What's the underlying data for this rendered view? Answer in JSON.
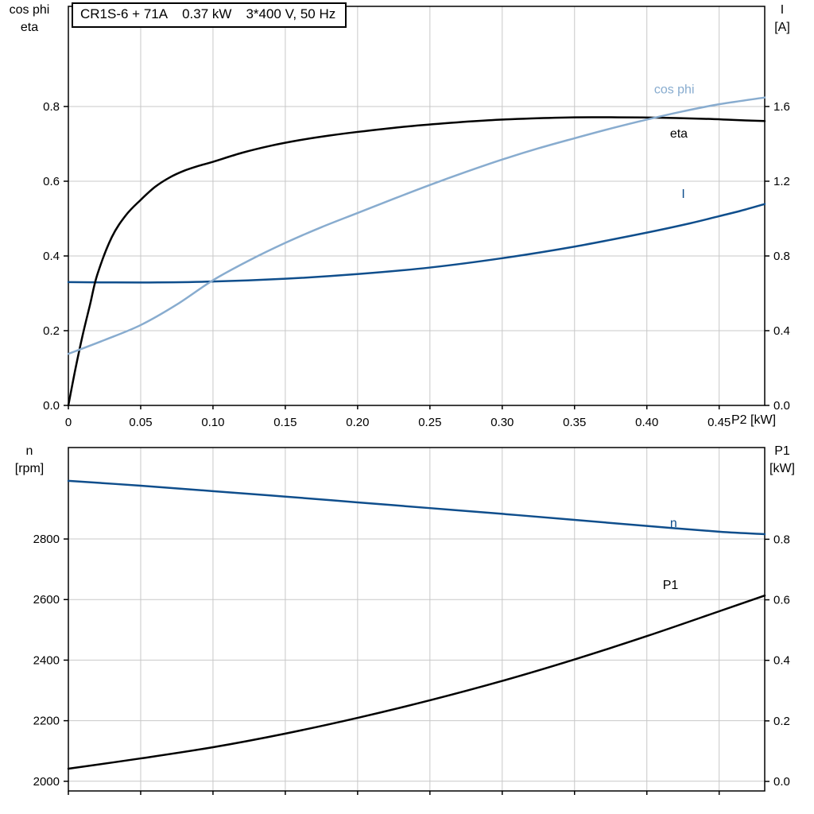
{
  "title_box": {
    "parts": [
      "CR1S-6 + 71A",
      "0.37 kW",
      "3*400 V, 50 Hz"
    ]
  },
  "axis_corner_labels": {
    "top_left": [
      "cos phi",
      "eta"
    ],
    "top_right": [
      "I",
      "[A]"
    ],
    "x_axis": "P2 [kW]",
    "bottom_left": [
      "n",
      "[rpm]"
    ],
    "bottom_right": [
      "P1",
      "[kW]"
    ]
  },
  "colors": {
    "black_curve": "#000000",
    "light_blue_curve": "#88accf",
    "dark_blue_curve": "#0f4e8c",
    "grid": "#c8c8c8",
    "border": "#000000",
    "text": "#000000"
  },
  "chart_data": [
    {
      "id": "top",
      "type": "line",
      "title": "CR1S-6 + 71A  0.37 kW  3*400 V, 50 Hz",
      "xlabel": "P2 [kW]",
      "x_range": [
        0,
        0.4815
      ],
      "x_ticks": {
        "values": [
          0,
          0.05,
          0.1,
          0.15,
          0.2,
          0.25,
          0.3,
          0.35,
          0.4,
          0.45
        ],
        "labels": [
          "0",
          "0.05",
          "0.10",
          "0.15",
          "0.20",
          "0.25",
          "0.30",
          "0.35",
          "0.40",
          "0.45"
        ]
      },
      "left_axis": {
        "label": "cos phi / eta",
        "range": [
          0,
          1.068
        ],
        "tick_values": [
          0,
          0.2,
          0.4,
          0.6,
          0.8
        ],
        "tick_labels": [
          "0.0",
          "0.2",
          "0.4",
          "0.6",
          "0.8"
        ]
      },
      "right_axis": {
        "label": "I [A]",
        "range": [
          0,
          2.136
        ],
        "tick_values": [
          0,
          0.4,
          0.8,
          1.2,
          1.6
        ],
        "tick_labels": [
          "0.0",
          "0.4",
          "0.8",
          "1.2",
          "1.6"
        ]
      },
      "grid": true,
      "series": [
        {
          "name": "I",
          "axis": "right",
          "color_key": "dark_blue_curve",
          "label": {
            "text": "I",
            "x": 0.424,
            "y": 1.111
          },
          "points": [
            [
              0,
              0.66
            ],
            [
              0.05,
              0.658
            ],
            [
              0.1,
              0.663
            ],
            [
              0.15,
              0.678
            ],
            [
              0.2,
              0.703
            ],
            [
              0.25,
              0.738
            ],
            [
              0.3,
              0.788
            ],
            [
              0.35,
              0.85
            ],
            [
              0.4,
              0.925
            ],
            [
              0.43,
              0.975
            ],
            [
              0.45,
              1.013
            ],
            [
              0.465,
              1.042
            ],
            [
              0.4815,
              1.078
            ]
          ]
        },
        {
          "name": "eta",
          "axis": "left",
          "color_key": "black_curve",
          "label": {
            "text": "eta",
            "x": 0.416,
            "y": 0.717
          },
          "points": [
            [
              0,
              0
            ],
            [
              0.005,
              0.1
            ],
            [
              0.01,
              0.19
            ],
            [
              0.015,
              0.27
            ],
            [
              0.02,
              0.35
            ],
            [
              0.03,
              0.45
            ],
            [
              0.04,
              0.51
            ],
            [
              0.05,
              0.55
            ],
            [
              0.06,
              0.585
            ],
            [
              0.07,
              0.61
            ],
            [
              0.08,
              0.628
            ],
            [
              0.09,
              0.641
            ],
            [
              0.1,
              0.652
            ],
            [
              0.12,
              0.676
            ],
            [
              0.14,
              0.695
            ],
            [
              0.16,
              0.71
            ],
            [
              0.18,
              0.722
            ],
            [
              0.2,
              0.732
            ],
            [
              0.23,
              0.745
            ],
            [
              0.26,
              0.755
            ],
            [
              0.29,
              0.763
            ],
            [
              0.32,
              0.768
            ],
            [
              0.35,
              0.771
            ],
            [
              0.38,
              0.771
            ],
            [
              0.41,
              0.77
            ],
            [
              0.44,
              0.767
            ],
            [
              0.46,
              0.764
            ],
            [
              0.4815,
              0.761
            ]
          ]
        },
        {
          "name": "cos phi",
          "axis": "left",
          "color_key": "light_blue_curve",
          "label": {
            "text": "cos phi",
            "x": 0.405,
            "y": 0.835
          },
          "points": [
            [
              0,
              0.138
            ],
            [
              0.025,
              0.175
            ],
            [
              0.05,
              0.215
            ],
            [
              0.075,
              0.27
            ],
            [
              0.1,
              0.335
            ],
            [
              0.125,
              0.388
            ],
            [
              0.15,
              0.435
            ],
            [
              0.175,
              0.477
            ],
            [
              0.2,
              0.515
            ],
            [
              0.225,
              0.553
            ],
            [
              0.25,
              0.59
            ],
            [
              0.275,
              0.625
            ],
            [
              0.3,
              0.658
            ],
            [
              0.325,
              0.688
            ],
            [
              0.35,
              0.715
            ],
            [
              0.375,
              0.741
            ],
            [
              0.4,
              0.765
            ],
            [
              0.425,
              0.787
            ],
            [
              0.45,
              0.806
            ],
            [
              0.4815,
              0.824
            ]
          ]
        }
      ]
    },
    {
      "id": "bottom",
      "type": "line",
      "title": "",
      "xlabel": "P2 [kW]",
      "x_range": [
        0,
        0.4815
      ],
      "x_ticks": {
        "values": [
          0,
          0.05,
          0.1,
          0.15,
          0.2,
          0.25,
          0.3,
          0.35,
          0.4,
          0.45
        ],
        "labels": [
          "",
          "",
          "",
          "",
          "",
          "",
          "",
          "",
          "",
          ""
        ]
      },
      "left_axis": {
        "label": "n [rpm]",
        "range": [
          1968,
          3102
        ],
        "tick_values": [
          2000,
          2200,
          2400,
          2600,
          2800
        ],
        "tick_labels": [
          "2000",
          "2200",
          "2400",
          "2600",
          "2800"
        ]
      },
      "right_axis": {
        "label": "P1 [kW]",
        "range": [
          -0.0315,
          1.103
        ],
        "tick_values": [
          0,
          0.2,
          0.4,
          0.6,
          0.8
        ],
        "tick_labels": [
          "0.0",
          "0.2",
          "0.4",
          "0.6",
          "0.8"
        ]
      },
      "grid": true,
      "series": [
        {
          "name": "n",
          "axis": "left",
          "color_key": "dark_blue_curve",
          "label": {
            "text": "n",
            "x": 0.416,
            "y": 2840
          },
          "points": [
            [
              0,
              2992
            ],
            [
              0.05,
              2976
            ],
            [
              0.1,
              2958
            ],
            [
              0.15,
              2940
            ],
            [
              0.2,
              2921
            ],
            [
              0.25,
              2902
            ],
            [
              0.3,
              2883
            ],
            [
              0.35,
              2863
            ],
            [
              0.4,
              2843
            ],
            [
              0.45,
              2824
            ],
            [
              0.4815,
              2816
            ]
          ]
        },
        {
          "name": "P1",
          "axis": "right",
          "color_key": "black_curve",
          "label": {
            "text": "P1",
            "x": 0.411,
            "y": 0.635
          },
          "points": [
            [
              0,
              0.042
            ],
            [
              0.05,
              0.076
            ],
            [
              0.1,
              0.113
            ],
            [
              0.15,
              0.158
            ],
            [
              0.2,
              0.21
            ],
            [
              0.25,
              0.268
            ],
            [
              0.3,
              0.332
            ],
            [
              0.35,
              0.403
            ],
            [
              0.4,
              0.48
            ],
            [
              0.45,
              0.562
            ],
            [
              0.4815,
              0.614
            ]
          ]
        }
      ]
    }
  ]
}
